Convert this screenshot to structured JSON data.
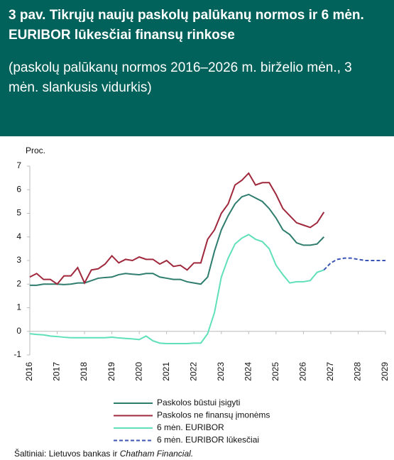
{
  "header": {
    "title": "3 pav.  Tikrųjų naujų paskolų palūkanų normos ir 6 mėn. EURIBOR lūkesčiai finansų rinkose",
    "subtitle": "(paskolų palūkanų normos 2016–2026 m. birželio mėn., 3 mėn. slankusis vidurkis)"
  },
  "chart_data": {
    "type": "line",
    "y_label": "Proc.",
    "x": [
      2016,
      2016.25,
      2016.5,
      2016.75,
      2017,
      2017.25,
      2017.5,
      2017.75,
      2018,
      2018.25,
      2018.5,
      2018.75,
      2019,
      2019.25,
      2019.5,
      2019.75,
      2020,
      2020.25,
      2020.5,
      2020.75,
      2021,
      2021.25,
      2021.5,
      2021.75,
      2022,
      2022.25,
      2022.5,
      2022.75,
      2023,
      2023.25,
      2023.5,
      2023.75,
      2024,
      2024.25,
      2024.5,
      2024.75,
      2025,
      2025.25,
      2025.5,
      2025.75,
      2026,
      2026.25,
      2026.5,
      2026.75,
      2027,
      2027.25,
      2027.5,
      2027.75,
      2028,
      2028.25,
      2028.5,
      2028.75,
      2029
    ],
    "series": [
      {
        "name": "Paskolos būstui įsigyti",
        "color": "#2e7d6e",
        "dash": false,
        "values": [
          1.95,
          1.95,
          2.0,
          2.0,
          2.0,
          1.98,
          2.0,
          2.05,
          2.05,
          2.15,
          2.25,
          2.28,
          2.3,
          2.4,
          2.45,
          2.42,
          2.4,
          2.45,
          2.45,
          2.3,
          2.25,
          2.2,
          2.2,
          2.1,
          2.05,
          2.0,
          2.3,
          3.4,
          4.3,
          4.9,
          5.4,
          5.7,
          5.8,
          5.65,
          5.5,
          5.2,
          4.8,
          4.3,
          4.1,
          3.75,
          3.65,
          3.65,
          3.7,
          4.0,
          null,
          null,
          null,
          null,
          null,
          null,
          null,
          null,
          null
        ]
      },
      {
        "name": "Paskolos ne finansų įmonėms",
        "color": "#a0283c",
        "dash": false,
        "values": [
          2.3,
          2.45,
          2.2,
          2.2,
          2.0,
          2.35,
          2.35,
          2.7,
          2.05,
          2.6,
          2.65,
          2.85,
          3.2,
          2.9,
          3.05,
          3.0,
          3.15,
          3.05,
          3.05,
          2.85,
          3.0,
          2.75,
          2.8,
          2.6,
          2.9,
          2.9,
          3.9,
          4.3,
          5.0,
          5.4,
          6.2,
          6.4,
          6.7,
          6.2,
          6.3,
          6.3,
          5.8,
          5.2,
          4.9,
          4.6,
          4.5,
          4.4,
          4.6,
          5.05,
          null,
          null,
          null,
          null,
          null,
          null,
          null,
          null,
          null
        ]
      },
      {
        "name": "6 mėn. EURIBOR",
        "color": "#5fe0b8",
        "dash": false,
        "values": [
          -0.1,
          -0.13,
          -0.15,
          -0.2,
          -0.22,
          -0.25,
          -0.27,
          -0.27,
          -0.27,
          -0.27,
          -0.27,
          -0.27,
          -0.25,
          -0.28,
          -0.3,
          -0.32,
          -0.35,
          -0.2,
          -0.4,
          -0.5,
          -0.52,
          -0.52,
          -0.52,
          -0.52,
          -0.5,
          -0.5,
          -0.1,
          0.8,
          2.3,
          3.1,
          3.7,
          3.95,
          4.1,
          3.9,
          3.8,
          3.5,
          2.8,
          2.4,
          2.05,
          2.1,
          2.1,
          2.15,
          2.5,
          2.6,
          null,
          null,
          null,
          null,
          null,
          null,
          null,
          null,
          null
        ]
      },
      {
        "name": "6 mėn. EURIBOR lūkesčiai",
        "color": "#3a55b5",
        "dash": true,
        "values": [
          null,
          null,
          null,
          null,
          null,
          null,
          null,
          null,
          null,
          null,
          null,
          null,
          null,
          null,
          null,
          null,
          null,
          null,
          null,
          null,
          null,
          null,
          null,
          null,
          null,
          null,
          null,
          null,
          null,
          null,
          null,
          null,
          null,
          null,
          null,
          null,
          null,
          null,
          null,
          null,
          null,
          null,
          null,
          2.6,
          2.9,
          3.05,
          3.1,
          3.1,
          3.05,
          3.0,
          3.0,
          3.0,
          3.0
        ]
      }
    ],
    "xlim": [
      2016,
      2029
    ],
    "xticks": [
      2016,
      2017,
      2018,
      2019,
      2020,
      2021,
      2022,
      2023,
      2024,
      2025,
      2026,
      2027,
      2028,
      2029
    ],
    "ylim": [
      -1,
      7
    ],
    "yticks": [
      -1,
      0,
      1,
      2,
      3,
      4,
      5,
      6,
      7
    ],
    "grid": false
  },
  "source": {
    "text": "Šaltiniai: Lietuvos bankas ir",
    "italic": "Chatham Financial."
  }
}
